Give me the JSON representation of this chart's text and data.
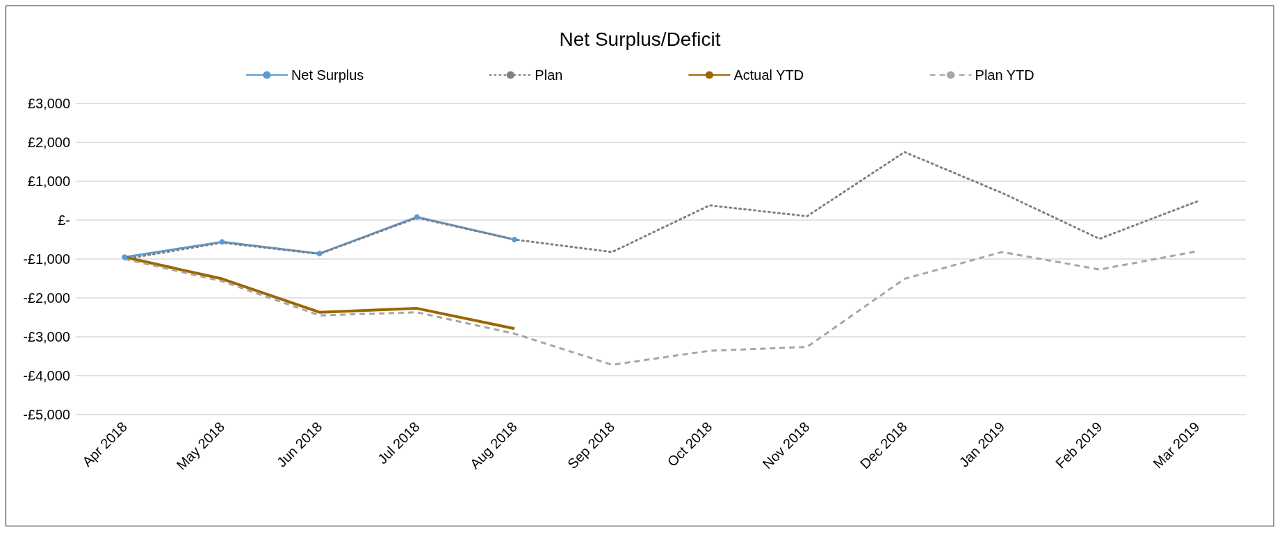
{
  "chart_data": {
    "type": "line",
    "title": "Net Surplus/Deficit",
    "categories": [
      "Apr 2018",
      "May 2018",
      "Jun 2018",
      "Jul 2018",
      "Aug 2018",
      "Sep 2018",
      "Oct 2018",
      "Nov 2018",
      "Dec 2018",
      "Jan 2019",
      "Feb 2019",
      "Mar 2019"
    ],
    "series": [
      {
        "name": "Net Surplus",
        "color": "#5b9bd5",
        "marker": "circle",
        "line_style": "solid",
        "values": [
          -950,
          -560,
          -860,
          80,
          -500,
          null,
          null,
          null,
          null,
          null,
          null,
          null
        ]
      },
      {
        "name": "Plan",
        "color": "#808080",
        "marker": "none",
        "line_style": "dotted",
        "values": [
          -1000,
          -580,
          -870,
          60,
          -500,
          -820,
          380,
          100,
          1750,
          700,
          -480,
          480
        ]
      },
      {
        "name": "Actual YTD",
        "color": "#9c6500",
        "marker": "none",
        "line_style": "solid",
        "values": [
          -950,
          -1510,
          -2370,
          -2270,
          -2790,
          null,
          null,
          null,
          null,
          null,
          null,
          null
        ]
      },
      {
        "name": "Plan YTD",
        "color": "#a6a6a6",
        "marker": "none",
        "line_style": "dashed",
        "values": [
          -1000,
          -1570,
          -2450,
          -2370,
          -2920,
          -3720,
          -3360,
          -3260,
          -1510,
          -820,
          -1270,
          -800
        ]
      }
    ],
    "ylim": [
      -5000,
      3000
    ],
    "yticks": [
      {
        "value": -5000,
        "label": "-£5,000"
      },
      {
        "value": -4000,
        "label": "-£4,000"
      },
      {
        "value": -3000,
        "label": "-£3,000"
      },
      {
        "value": -2000,
        "label": "-£2,000"
      },
      {
        "value": -1000,
        "label": "-£1,000"
      },
      {
        "value": 0,
        "label": "£-"
      },
      {
        "value": 1000,
        "label": "£1,000"
      },
      {
        "value": 2000,
        "label": "£2,000"
      },
      {
        "value": 3000,
        "label": "£3,000"
      }
    ],
    "grid": "y",
    "legend": "top"
  }
}
